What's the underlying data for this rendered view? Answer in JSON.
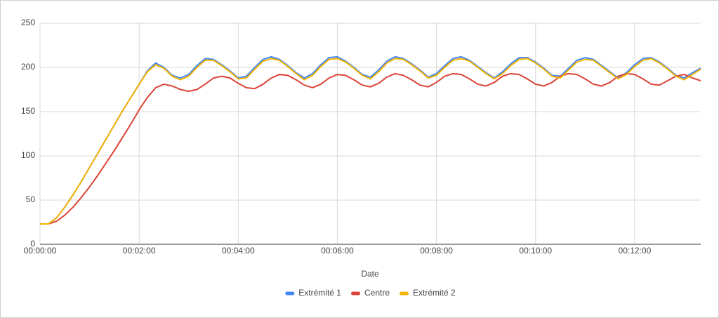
{
  "chart_data": {
    "type": "line",
    "x_label": "Date",
    "x": [
      0,
      10,
      20,
      30,
      40,
      50,
      60,
      70,
      80,
      90,
      100,
      110,
      120,
      130,
      140,
      150,
      160,
      170,
      180,
      190,
      200,
      210,
      220,
      230,
      240,
      250,
      260,
      270,
      280,
      290,
      300,
      310,
      320,
      330,
      340,
      350,
      360,
      370,
      380,
      390,
      400,
      410,
      420,
      430,
      440,
      450,
      460,
      470,
      480,
      490,
      500,
      510,
      520,
      530,
      540,
      550,
      560,
      570,
      580,
      590,
      600,
      610,
      620,
      630,
      640,
      650,
      660,
      670,
      680,
      690,
      700,
      710,
      720,
      730,
      740,
      750,
      760,
      770,
      780,
      790,
      800
    ],
    "series": [
      {
        "name": "Extrémité 1",
        "color": "#4285f4",
        "values": [
          23,
          23,
          30,
          42,
          56,
          71,
          87,
          103,
          119,
          135,
          151,
          166,
          181,
          196,
          205,
          200,
          191,
          188,
          192,
          202,
          210,
          209,
          203,
          196,
          188,
          190,
          200,
          209,
          212,
          209,
          202,
          194,
          188,
          193,
          203,
          211,
          212,
          207,
          200,
          192,
          189,
          197,
          207,
          212,
          210,
          204,
          197,
          189,
          193,
          202,
          210,
          212,
          208,
          201,
          194,
          188,
          195,
          204,
          211,
          211,
          206,
          199,
          191,
          190,
          199,
          208,
          211,
          209,
          202,
          195,
          188,
          194,
          203,
          210,
          211,
          206,
          199,
          191,
          188,
          194,
          199
        ]
      },
      {
        "name": "Centre",
        "color": "#db4437",
        "values": [
          23,
          23,
          26,
          33,
          42,
          53,
          65,
          78,
          92,
          106,
          121,
          136,
          152,
          166,
          177,
          181,
          179,
          175,
          173,
          175,
          181,
          188,
          190,
          188,
          182,
          177,
          176,
          181,
          188,
          192,
          191,
          186,
          180,
          177,
          181,
          188,
          192,
          191,
          186,
          180,
          178,
          182,
          189,
          193,
          191,
          186,
          180,
          178,
          183,
          190,
          193,
          192,
          187,
          181,
          179,
          183,
          190,
          193,
          192,
          187,
          181,
          179,
          183,
          190,
          193,
          192,
          187,
          181,
          179,
          183,
          190,
          193,
          192,
          187,
          181,
          180,
          185,
          190,
          192,
          188,
          185
        ]
      },
      {
        "name": "Extrémité 2",
        "color": "#f4b400",
        "values": [
          23,
          23,
          30,
          42,
          56,
          71,
          87,
          103,
          119,
          135,
          151,
          166,
          181,
          195,
          203,
          199,
          190,
          186,
          190,
          200,
          208,
          208,
          202,
          195,
          187,
          188,
          198,
          207,
          210,
          208,
          201,
          193,
          186,
          191,
          201,
          209,
          210,
          206,
          199,
          191,
          187,
          195,
          205,
          210,
          209,
          203,
          196,
          188,
          191,
          200,
          208,
          210,
          207,
          200,
          193,
          187,
          193,
          202,
          209,
          210,
          205,
          198,
          190,
          188,
          197,
          206,
          209,
          208,
          201,
          194,
          187,
          192,
          201,
          208,
          210,
          205,
          198,
          190,
          186,
          192,
          198
        ]
      }
    ],
    "xlim": [
      0,
      800
    ],
    "xticks": [
      {
        "value": 0,
        "label": "00:00:00"
      },
      {
        "value": 120,
        "label": "00:02:00"
      },
      {
        "value": 240,
        "label": "00:04:00"
      },
      {
        "value": 360,
        "label": "00:06:00"
      },
      {
        "value": 480,
        "label": "00:08:00"
      },
      {
        "value": 600,
        "label": "00:10:00"
      },
      {
        "value": 720,
        "label": "00:12:00"
      }
    ],
    "ylim": [
      0,
      250
    ],
    "yticks": [
      0,
      50,
      100,
      150,
      200,
      250
    ],
    "grid": true,
    "legend": "bottom"
  }
}
